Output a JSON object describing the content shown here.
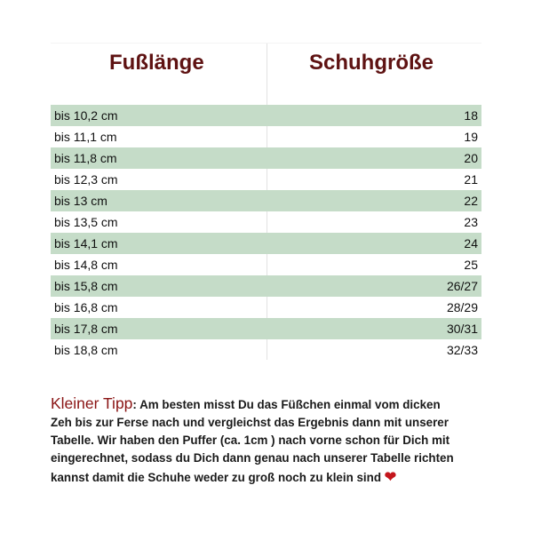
{
  "table": {
    "headers": [
      "Fußlänge",
      "Schuhgröße"
    ],
    "rows": [
      {
        "length": "bis 10,2 cm",
        "size": "18"
      },
      {
        "length": "bis 11,1 cm",
        "size": "19"
      },
      {
        "length": "bis 11,8 cm",
        "size": "20"
      },
      {
        "length": "bis 12,3 cm",
        "size": "21"
      },
      {
        "length": "bis 13 cm",
        "size": "22"
      },
      {
        "length": "bis 13,5 cm",
        "size": "23"
      },
      {
        "length": "bis 14,1 cm",
        "size": "24"
      },
      {
        "length": "bis 14,8 cm",
        "size": "25"
      },
      {
        "length": "bis 15,8 cm",
        "size": "26/27"
      },
      {
        "length": "bis 16,8 cm",
        "size": "28/29"
      },
      {
        "length": "bis 17,8 cm",
        "size": "30/31"
      },
      {
        "length": "bis 18,8 cm",
        "size": "32/33"
      }
    ],
    "stripe_color": "#c5dcc8",
    "header_color": "#5e1212"
  },
  "tip": {
    "label": "Kleiner Tipp",
    "lines": [
      ": Am besten misst Du das Füßchen einmal vom dicken",
      "Zeh bis zur Ferse nach und vergleichst das Ergebnis dann mit unserer",
      "Tabelle. Wir haben den Puffer (ca. 1cm ) nach vorne schon für Dich mit",
      "eingerechnet, sodass du Dich dann genau nach unserer Tabelle richten",
      "kannst damit die Schuhe weder zu groß noch zu klein sind"
    ],
    "icon": "heart-icon"
  }
}
